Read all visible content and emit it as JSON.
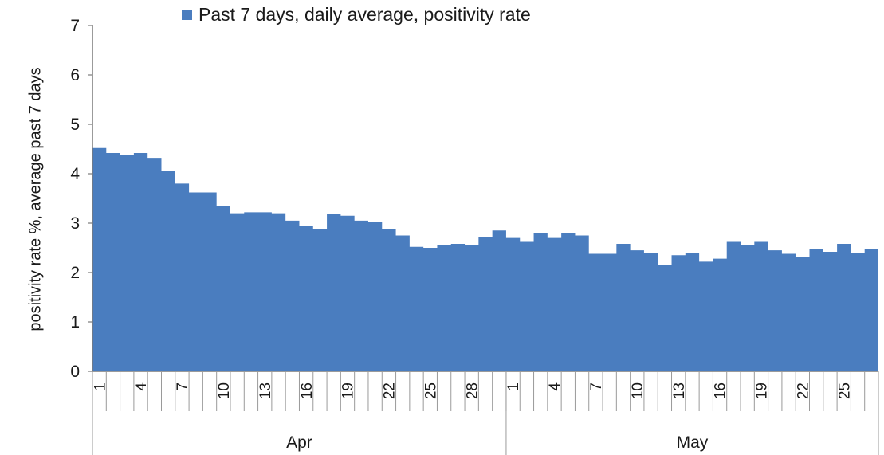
{
  "chart_data": {
    "type": "area",
    "legend": {
      "label": "Past 7 days, daily average, positivity rate",
      "color": "#4a7dbf",
      "placement": "top"
    },
    "ylabel": "positivity rate %, average past 7 days",
    "ylim": [
      0,
      7
    ],
    "yticks": [
      "0",
      "1",
      "2",
      "3",
      "4",
      "5",
      "6",
      "7"
    ],
    "months": [
      {
        "name": "Apr",
        "days": 30,
        "tick_labels": [
          "1",
          "4",
          "7",
          "10",
          "13",
          "16",
          "19",
          "22",
          "25",
          "28"
        ]
      },
      {
        "name": "May",
        "days": 27,
        "tick_labels": [
          "1",
          "4",
          "7",
          "10",
          "13",
          "16",
          "19",
          "22",
          "25"
        ]
      }
    ],
    "series": [
      {
        "values": [
          4.52,
          4.42,
          4.38,
          4.42,
          4.32,
          4.05,
          3.8,
          3.62,
          3.62,
          3.35,
          3.2,
          3.22,
          3.22,
          3.2,
          3.05,
          2.95,
          2.88,
          3.18,
          3.15,
          3.05,
          3.02,
          2.88,
          2.75,
          2.52,
          2.5,
          2.55,
          2.58,
          2.55,
          2.72,
          2.85,
          2.7,
          2.62,
          2.8,
          2.7,
          2.8,
          2.75,
          2.38,
          2.38,
          2.58,
          2.45,
          2.4,
          2.15,
          2.35,
          2.4,
          2.22,
          2.28,
          2.62,
          2.55,
          2.62,
          2.45,
          2.38,
          2.32,
          2.48,
          2.42,
          2.58,
          2.4,
          2.48
        ]
      }
    ],
    "colors": {
      "area": "#4a7dbf",
      "axis": "#7a7a7a"
    }
  }
}
